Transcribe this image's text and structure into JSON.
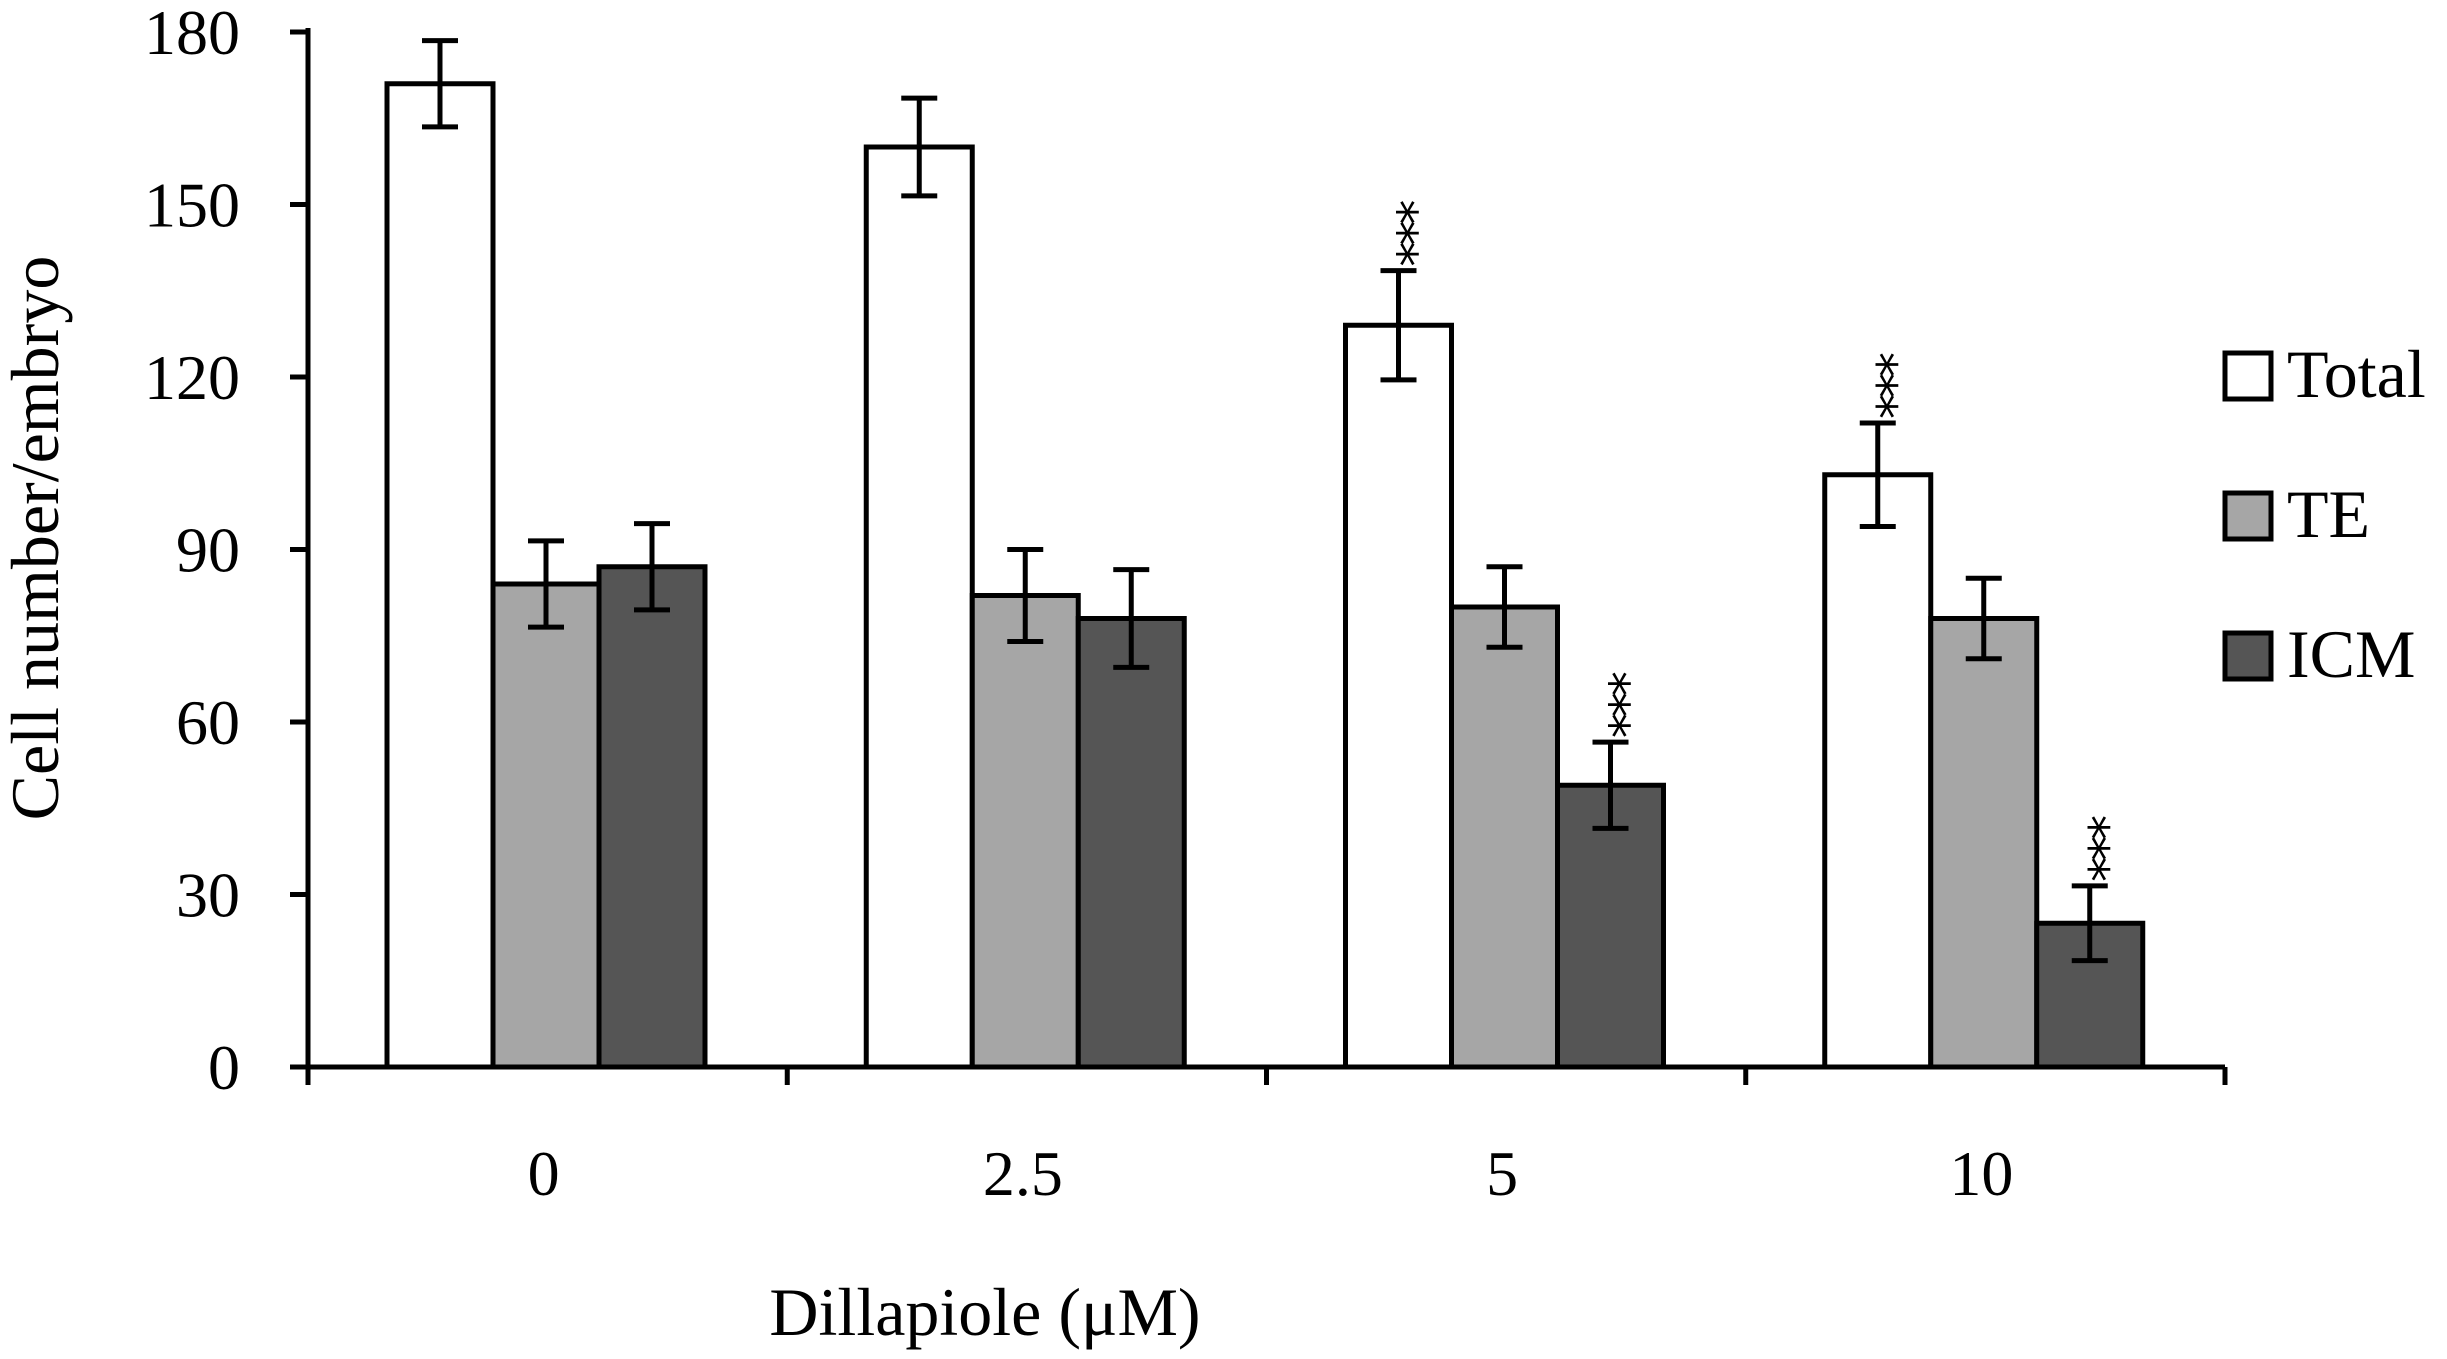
{
  "chart_data": {
    "type": "bar",
    "title": "",
    "xlabel": "Dillapiole (μM)",
    "ylabel": "Cell number/embryo",
    "ylim": [
      0,
      180
    ],
    "yticks": [
      "0",
      "30",
      "60",
      "90",
      "120",
      "150",
      "180"
    ],
    "categories": [
      "0",
      "2.5",
      "5",
      "10"
    ],
    "series": [
      {
        "name": "Total",
        "color": "#ffffff",
        "values": [
          171,
          160,
          129,
          103
        ],
        "errors": [
          7.5,
          8.5,
          9.5,
          9
        ],
        "significance": [
          "",
          "",
          "***",
          "***"
        ]
      },
      {
        "name": "TE",
        "color": "#a6a6a6",
        "values": [
          84,
          82,
          80,
          78
        ],
        "errors": [
          7.5,
          8,
          7,
          7
        ],
        "significance": [
          "",
          "",
          "",
          ""
        ]
      },
      {
        "name": "ICM",
        "color": "#555555",
        "values": [
          87,
          78,
          49,
          25
        ],
        "errors": [
          7.5,
          8.5,
          7.5,
          6.5
        ],
        "significance": [
          "",
          "",
          "***",
          "***"
        ]
      }
    ],
    "legend_position": "right"
  }
}
